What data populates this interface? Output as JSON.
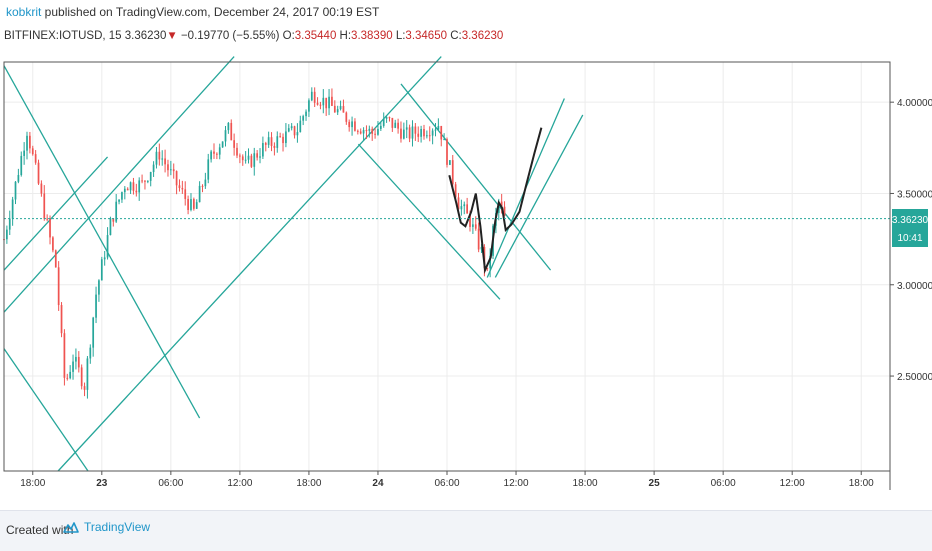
{
  "header": {
    "author": "kobkrit",
    "published": " published on TradingView.com, December 24, 2017 00:19 EST",
    "symbol": "BITFINEX:IOTUSD, 15",
    "last": "3.36230",
    "change_arrow": "▼",
    "change": "−0.19770 (−5.55%)",
    "o_label": "O:",
    "o_value": "3.35440",
    "h_label": "H:",
    "h_value": "3.38390",
    "l_label": "L:",
    "l_value": "3.34650",
    "c_label": "C:",
    "c_value": "3.36230"
  },
  "price_tag": {
    "value": "3.36230",
    "timer": "10:41"
  },
  "footer": {
    "created_with": "Created with",
    "brand": "TradingView",
    "logo_icon": "tradingview-cloud-icon"
  },
  "colors": {
    "up": "#26a69a",
    "down": "#ef5350",
    "drawing_line": "#26a69a",
    "annotation": "#222222",
    "price_line": "#26a69a",
    "price_tag_bg": "#26a69a"
  },
  "chart_data": {
    "type": "candlestick",
    "title": "",
    "xlabel": "",
    "ylabel": "",
    "ylim": [
      1.98,
      4.22
    ],
    "y_ticks": [
      "2.50000",
      "3.00000",
      "3.50000",
      "4.00000"
    ],
    "y_tick_values": [
      2.5,
      3.0,
      3.5,
      4.0
    ],
    "x_ticks": [
      "18:00",
      "23",
      "06:00",
      "12:00",
      "18:00",
      "24",
      "06:00",
      "12:00",
      "18:00",
      "25",
      "06:00",
      "12:00",
      "18:00"
    ],
    "x_tick_hours": [
      -6,
      0,
      6,
      12,
      18,
      24,
      30,
      36,
      42,
      48,
      54,
      60,
      66
    ],
    "x_unit": "hours since Dec 23 00:00",
    "xlim": [
      -8.5,
      68.5
    ],
    "last_price": 3.3623,
    "candle_interval_minutes": 15,
    "price_path_hours": [
      -8.5,
      -6.5,
      -5.5,
      -4,
      -3.2,
      -2.5,
      -1.5,
      -0.5,
      0.8,
      2,
      3.5,
      5,
      6.5,
      8,
      9.5,
      11,
      12.5,
      14,
      15.5,
      17,
      18.3,
      19,
      20.5,
      22,
      23.5,
      24.8,
      26.5,
      28,
      29.3,
      30,
      31,
      32,
      33,
      33.5,
      34,
      34.5,
      35
    ],
    "price_path_values": [
      3.25,
      3.85,
      3.55,
      3.1,
      2.45,
      2.6,
      2.45,
      2.95,
      3.35,
      3.55,
      3.55,
      3.72,
      3.55,
      3.4,
      3.7,
      3.85,
      3.65,
      3.75,
      3.8,
      3.85,
      4.05,
      4.02,
      3.95,
      3.88,
      3.83,
      3.9,
      3.82,
      3.85,
      3.88,
      3.7,
      3.45,
      3.35,
      3.18,
      3.05,
      3.3,
      3.45,
      3.36
    ],
    "trend_lines": [
      {
        "x1": -8.5,
        "y1": 2.85,
        "x2": 11.5,
        "y2": 4.25
      },
      {
        "x1": -3.8,
        "y1": 1.98,
        "x2": 29.5,
        "y2": 4.25
      },
      {
        "x1": -8.5,
        "y1": 3.08,
        "x2": 0.5,
        "y2": 3.7
      },
      {
        "x1": -8.5,
        "y1": 4.2,
        "x2": 8.5,
        "y2": 2.27
      },
      {
        "x1": -8.5,
        "y1": 2.65,
        "x2": -1.2,
        "y2": 1.98
      },
      {
        "x1": 22.3,
        "y1": 3.77,
        "x2": 34.6,
        "y2": 2.92
      },
      {
        "x1": 26,
        "y1": 4.1,
        "x2": 39,
        "y2": 3.08
      },
      {
        "x1": 33.5,
        "y1": 3.04,
        "x2": 40.2,
        "y2": 4.02
      },
      {
        "x1": 34.2,
        "y1": 3.04,
        "x2": 41.8,
        "y2": 3.93
      }
    ],
    "annotation_path": [
      [
        30.2,
        3.6
      ],
      [
        30.8,
        3.45
      ],
      [
        31.2,
        3.34
      ],
      [
        31.6,
        3.32
      ],
      [
        32.1,
        3.4
      ],
      [
        32.5,
        3.5
      ],
      [
        32.9,
        3.32
      ],
      [
        33.3,
        3.08
      ],
      [
        33.8,
        3.15
      ],
      [
        34.2,
        3.35
      ],
      [
        34.5,
        3.45
      ],
      [
        34.8,
        3.42
      ],
      [
        35.1,
        3.3
      ],
      [
        35.6,
        3.33
      ],
      [
        36.3,
        3.4
      ],
      [
        36.9,
        3.55
      ],
      [
        37.6,
        3.72
      ],
      [
        38.2,
        3.86
      ]
    ],
    "grid": true,
    "legend": "none"
  }
}
